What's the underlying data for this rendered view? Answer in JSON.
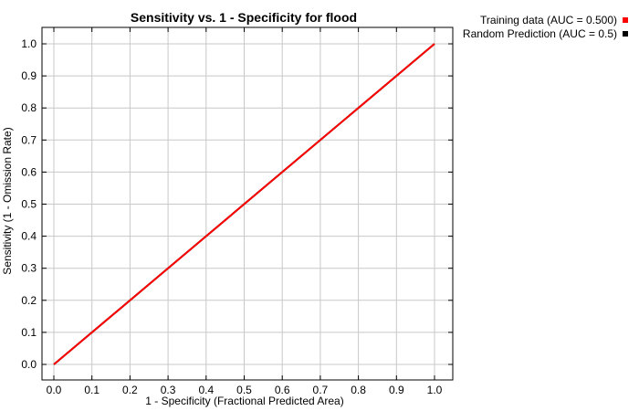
{
  "chart_data": {
    "type": "line",
    "title": "Sensitivity vs. 1 - Specificity for flood",
    "xlabel": "1 - Specificity  (Fractional Predicted Area)",
    "ylabel": "Sensitivity  (1 - Omission Rate)",
    "xlim": [
      0,
      1
    ],
    "ylim": [
      0,
      1
    ],
    "xticks": [
      "0.0",
      "0.1",
      "0.2",
      "0.3",
      "0.4",
      "0.5",
      "0.6",
      "0.7",
      "0.8",
      "0.9",
      "1.0"
    ],
    "yticks": [
      "0.0",
      "0.1",
      "0.2",
      "0.3",
      "0.4",
      "0.5",
      "0.6",
      "0.7",
      "0.8",
      "0.9",
      "1.0"
    ],
    "grid": true,
    "legend_position": "top-right outside",
    "series": [
      {
        "name": "Training data (AUC = 0.500)",
        "color": "#ff0000",
        "x": [
          0,
          1
        ],
        "y": [
          0,
          1
        ]
      },
      {
        "name": "Random Prediction (AUC = 0.5)",
        "color": "#000000",
        "x": [
          0,
          1
        ],
        "y": [
          0,
          1
        ]
      }
    ]
  }
}
